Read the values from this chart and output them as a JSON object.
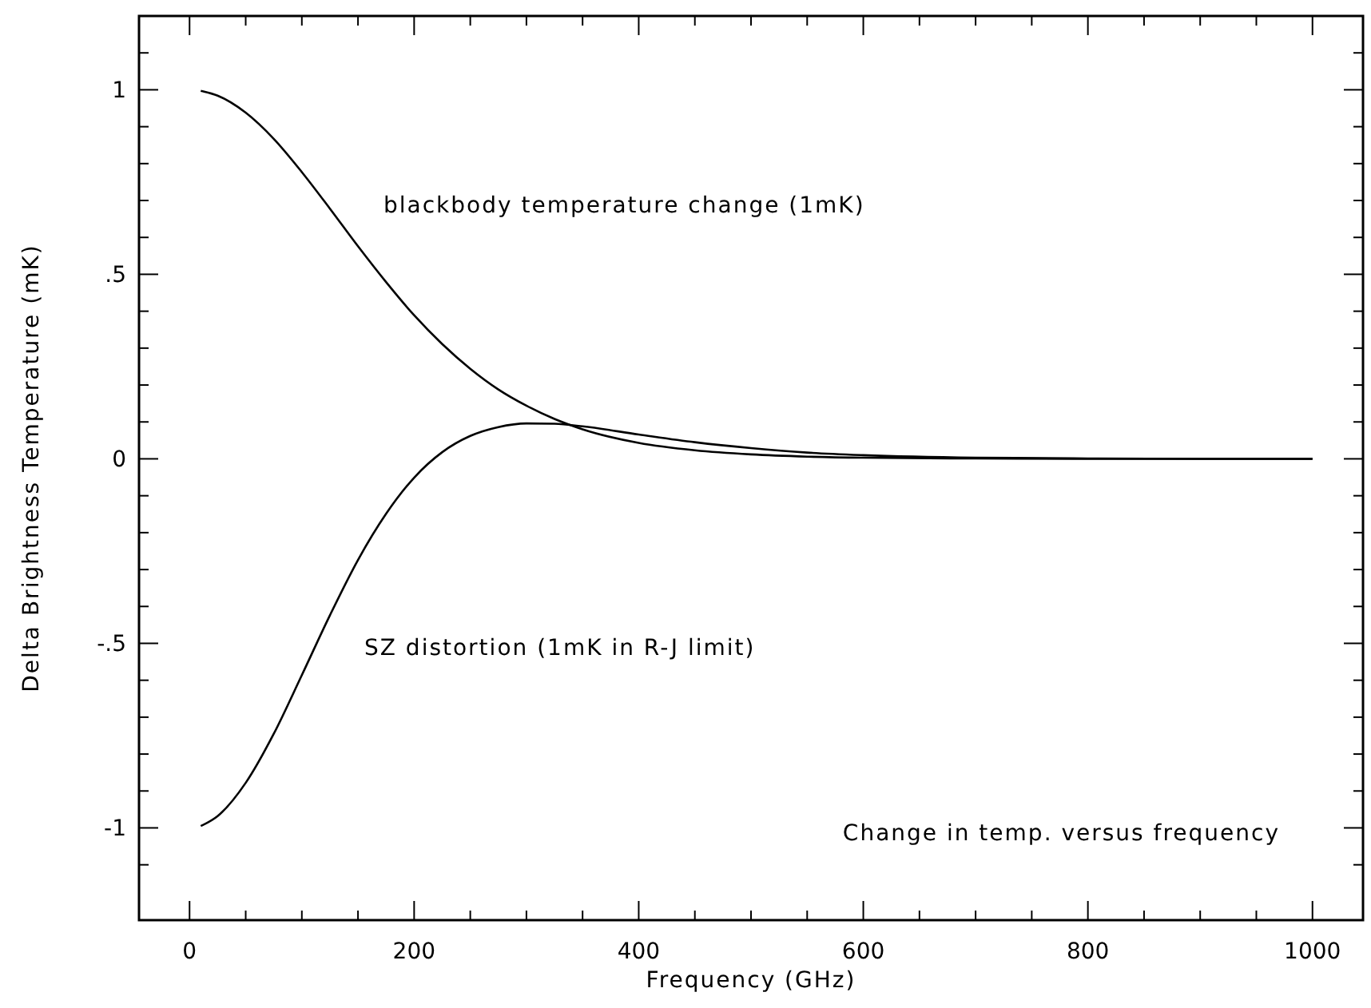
{
  "chart_data": {
    "type": "line",
    "xlabel": "Frequency (GHz)",
    "ylabel": "Delta Brightness Temperature (mK)",
    "x": [
      10,
      25,
      50,
      75,
      100,
      125,
      150,
      175,
      200,
      225,
      250,
      275,
      300,
      325,
      350,
      400,
      450,
      500,
      550,
      600,
      700,
      800,
      900,
      1000
    ],
    "series": [
      {
        "name": "blackbody temperature change (1mK)",
        "color": "#000000",
        "values": [
          0.997,
          0.984,
          0.938,
          0.867,
          0.777,
          0.678,
          0.576,
          0.479,
          0.389,
          0.311,
          0.244,
          0.188,
          0.144,
          0.108,
          0.08,
          0.043,
          0.023,
          0.012,
          0.006,
          0.003,
          0.001,
          0,
          0,
          0
        ]
      },
      {
        "name": "SZ distortion (1mK in R-J limit)",
        "color": "#000000",
        "values": [
          -0.995,
          -0.968,
          -0.878,
          -0.745,
          -0.586,
          -0.424,
          -0.274,
          -0.149,
          -0.051,
          0.018,
          0.062,
          0.086,
          0.096,
          0.095,
          0.088,
          0.066,
          0.045,
          0.029,
          0.017,
          0.01,
          0.003,
          0.001,
          0,
          0
        ]
      }
    ],
    "xlim": [
      -45,
      1045
    ],
    "ylim": [
      -1.25,
      1.2
    ],
    "xticks": [
      0,
      {
        "value": 50,
        "label": null
      },
      {
        "value": 100,
        "label": null
      },
      {
        "value": 150,
        "label": null
      },
      200,
      {
        "value": 250,
        "label": null
      },
      {
        "value": 300,
        "label": null
      },
      {
        "value": 350,
        "label": null
      },
      400,
      {
        "value": 450,
        "label": null
      },
      {
        "value": 500,
        "label": null
      },
      {
        "value": 550,
        "label": null
      },
      600,
      {
        "value": 650,
        "label": null
      },
      {
        "value": 700,
        "label": null
      },
      {
        "value": 750,
        "label": null
      },
      800,
      {
        "value": 850,
        "label": null
      },
      {
        "value": 900,
        "label": null
      },
      {
        "value": 950,
        "label": null
      },
      1000
    ],
    "yticks": [
      {
        "value": -1.1,
        "label": null
      },
      {
        "value": -1,
        "label": "-1"
      },
      {
        "value": -0.9,
        "label": null
      },
      {
        "value": -0.8,
        "label": null
      },
      {
        "value": -0.7,
        "label": null
      },
      {
        "value": -0.6,
        "label": null
      },
      {
        "value": -0.5,
        "label": "-.5"
      },
      {
        "value": -0.4,
        "label": null
      },
      {
        "value": -0.3,
        "label": null
      },
      {
        "value": -0.2,
        "label": null
      },
      {
        "value": -0.1,
        "label": null
      },
      0,
      {
        "value": 0.1,
        "label": null
      },
      {
        "value": 0.2,
        "label": null
      },
      {
        "value": 0.3,
        "label": null
      },
      {
        "value": 0.4,
        "label": null
      },
      {
        "value": 0.5,
        "label": ".5"
      },
      {
        "value": 0.6,
        "label": null
      },
      {
        "value": 0.7,
        "label": null
      },
      {
        "value": 0.8,
        "label": null
      },
      {
        "value": 0.9,
        "label": null
      },
      1,
      {
        "value": 1.1,
        "label": null
      }
    ],
    "annotations": [
      "Change in temp. versus frequency"
    ],
    "legend": false,
    "grid": false,
    "marker": "none",
    "line_style": "solid"
  }
}
